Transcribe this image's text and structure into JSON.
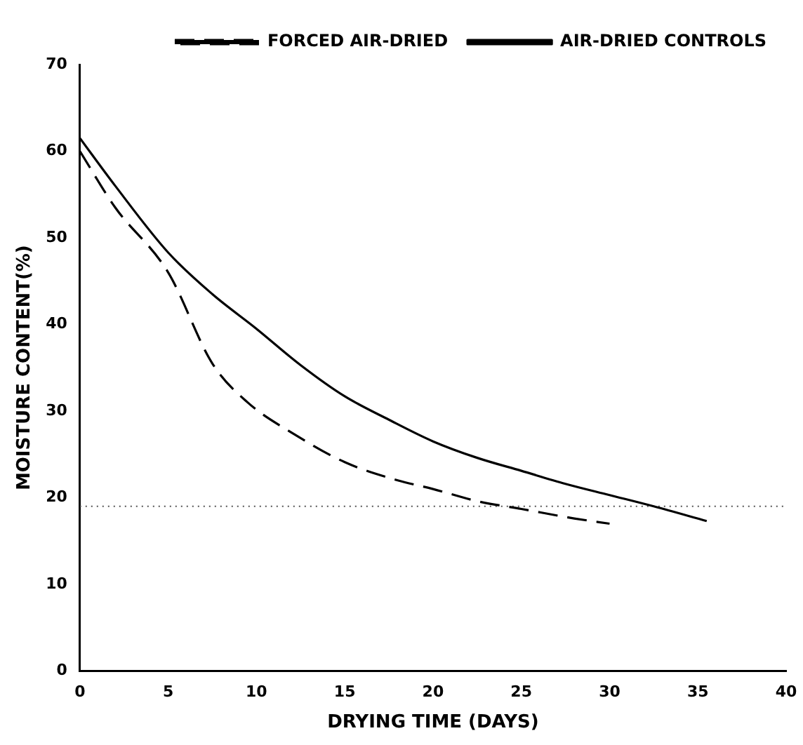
{
  "chart_data": {
    "type": "line",
    "xlabel": "DRYING TIME (DAYS)",
    "ylabel": "MOISTURE CONTENT(%)",
    "xlim": [
      0,
      40
    ],
    "xticks": [
      0,
      5,
      10,
      15,
      20,
      25,
      30,
      35,
      40
    ],
    "ylim": [
      0,
      70
    ],
    "yticks": [
      0,
      10,
      20,
      30,
      40,
      50,
      60,
      70
    ],
    "grid": false,
    "legend": "top right",
    "marker": "none",
    "series": [
      {
        "name": "FORCED AIR-DRIED",
        "color": "#000000",
        "line_style": "dashed",
        "x": [
          0,
          2,
          5,
          7.5,
          9.5,
          12,
          15,
          18,
          20,
          22.5,
          25,
          28,
          30
        ],
        "values": [
          60,
          53.5,
          46,
          35.5,
          31,
          27.5,
          24.1,
          22,
          21,
          19.6,
          18.7,
          17.6,
          17
        ]
      },
      {
        "name": "AIR-DRIED CONTROLS",
        "color": "#000000",
        "line_style": "solid",
        "x": [
          0,
          2,
          5,
          7.5,
          10,
          12.5,
          15,
          17.5,
          20,
          22.5,
          25,
          27.5,
          30,
          32.5,
          35.5
        ],
        "values": [
          61.5,
          56,
          48.3,
          43.5,
          39.5,
          35.3,
          31.7,
          29,
          26.5,
          24.6,
          23.1,
          21.6,
          20.3,
          19,
          17.3
        ]
      }
    ],
    "ref_lines": [
      {
        "axis": "y",
        "value": 19,
        "line_style": "dotted",
        "color": "#555555"
      }
    ]
  }
}
